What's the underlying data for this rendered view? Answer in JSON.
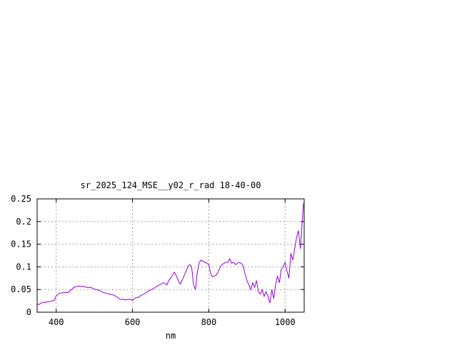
{
  "chart_data": {
    "type": "line",
    "title": "sr_2025_124_MSE__y02_r_rad 18-40-00",
    "xlabel": "nm",
    "ylabel": "",
    "xlim": [
      350,
      1050
    ],
    "ylim": [
      0,
      0.25
    ],
    "x_ticks": [
      400,
      600,
      800,
      1000
    ],
    "y_ticks": [
      0,
      0.05,
      0.1,
      0.15,
      0.2,
      0.25
    ],
    "x_tick_labels": [
      "400",
      "600",
      "800",
      "1000"
    ],
    "y_tick_labels": [
      "0",
      "0.05",
      "0.1",
      "0.15",
      "0.2",
      "0.25"
    ],
    "grid": true,
    "legend": "none",
    "line_color": "#9400d3",
    "series": [
      {
        "x": [
          350,
          355,
          360,
          365,
          370,
          375,
          380,
          385,
          390,
          395,
          400,
          405,
          410,
          415,
          420,
          425,
          430,
          435,
          440,
          445,
          450,
          455,
          460,
          465,
          470,
          475,
          480,
          485,
          490,
          495,
          500,
          505,
          510,
          515,
          520,
          525,
          530,
          535,
          540,
          545,
          550,
          555,
          560,
          565,
          570,
          575,
          580,
          585,
          590,
          595,
          600,
          605,
          610,
          615,
          620,
          625,
          630,
          635,
          640,
          645,
          650,
          655,
          660,
          665,
          670,
          675,
          680,
          685,
          690,
          695,
          700,
          705,
          710,
          715,
          720,
          725,
          730,
          735,
          740,
          745,
          750,
          755,
          760,
          765,
          770,
          775,
          780,
          785,
          790,
          795,
          800,
          805,
          810,
          815,
          820,
          825,
          830,
          835,
          840,
          845,
          850,
          855,
          860,
          865,
          870,
          875,
          880,
          885,
          890,
          895,
          900,
          905,
          910,
          915,
          920,
          925,
          930,
          935,
          940,
          945,
          950,
          955,
          960,
          965,
          970,
          975,
          980,
          985,
          990,
          995,
          1000,
          1005,
          1010,
          1015,
          1020,
          1025,
          1030,
          1035,
          1040,
          1045,
          1048
        ],
        "y": [
          0.018,
          0.017,
          0.02,
          0.022,
          0.021,
          0.023,
          0.023,
          0.024,
          0.025,
          0.026,
          0.036,
          0.04,
          0.042,
          0.043,
          0.043,
          0.044,
          0.043,
          0.046,
          0.05,
          0.054,
          0.056,
          0.057,
          0.058,
          0.057,
          0.057,
          0.056,
          0.055,
          0.054,
          0.055,
          0.053,
          0.051,
          0.05,
          0.049,
          0.047,
          0.045,
          0.043,
          0.042,
          0.041,
          0.04,
          0.039,
          0.038,
          0.036,
          0.033,
          0.03,
          0.028,
          0.029,
          0.027,
          0.028,
          0.029,
          0.028,
          0.026,
          0.03,
          0.033,
          0.032,
          0.036,
          0.038,
          0.04,
          0.043,
          0.046,
          0.048,
          0.05,
          0.052,
          0.055,
          0.058,
          0.06,
          0.062,
          0.065,
          0.064,
          0.06,
          0.07,
          0.075,
          0.082,
          0.088,
          0.08,
          0.07,
          0.062,
          0.07,
          0.08,
          0.09,
          0.1,
          0.105,
          0.1,
          0.06,
          0.05,
          0.09,
          0.11,
          0.115,
          0.112,
          0.11,
          0.108,
          0.105,
          0.085,
          0.078,
          0.08,
          0.082,
          0.09,
          0.1,
          0.105,
          0.108,
          0.11,
          0.11,
          0.118,
          0.108,
          0.11,
          0.105,
          0.108,
          0.11,
          0.108,
          0.102,
          0.085,
          0.07,
          0.06,
          0.05,
          0.065,
          0.055,
          0.07,
          0.045,
          0.04,
          0.05,
          0.035,
          0.045,
          0.035,
          0.02,
          0.05,
          0.03,
          0.06,
          0.08,
          0.065,
          0.095,
          0.1,
          0.11,
          0.09,
          0.075,
          0.13,
          0.115,
          0.14,
          0.165,
          0.18,
          0.14,
          0.2,
          0.24
        ]
      }
    ]
  }
}
